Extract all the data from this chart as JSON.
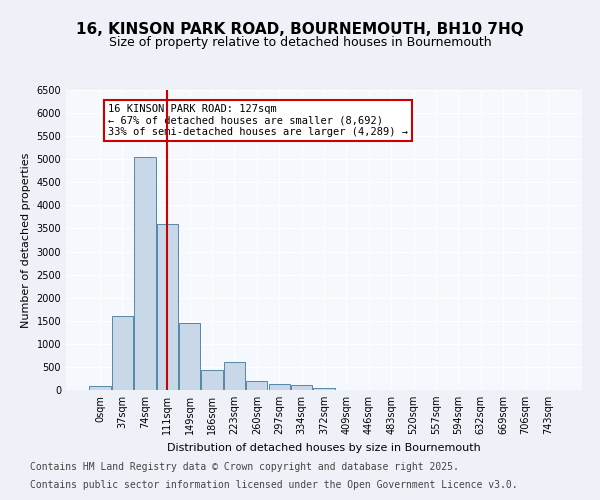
{
  "title": "16, KINSON PARK ROAD, BOURNEMOUTH, BH10 7HQ",
  "subtitle": "Size of property relative to detached houses in Bournemouth",
  "xlabel": "Distribution of detached houses by size in Bournemouth",
  "ylabel": "Number of detached properties",
  "bin_labels": [
    "0sqm",
    "37sqm",
    "74sqm",
    "111sqm",
    "149sqm",
    "186sqm",
    "223sqm",
    "260sqm",
    "297sqm",
    "334sqm",
    "372sqm",
    "409sqm",
    "446sqm",
    "483sqm",
    "520sqm",
    "557sqm",
    "594sqm",
    "632sqm",
    "669sqm",
    "706sqm",
    "743sqm"
  ],
  "bar_values": [
    80,
    1600,
    5050,
    3600,
    1450,
    430,
    600,
    200,
    140,
    100,
    40,
    5,
    2,
    0,
    0,
    0,
    0,
    0,
    0,
    0,
    0
  ],
  "bar_color": "#c8d8e8",
  "bar_edge_color": "#5588aa",
  "property_value": 127,
  "property_bin_index": 3,
  "vline_color": "#cc0000",
  "annotation_text": "16 KINSON PARK ROAD: 127sqm\n← 67% of detached houses are smaller (8,692)\n33% of semi-detached houses are larger (4,289) →",
  "annotation_box_edge": "#cc0000",
  "ylim": [
    0,
    6500
  ],
  "yticks": [
    0,
    500,
    1000,
    1500,
    2000,
    2500,
    3000,
    3500,
    4000,
    4500,
    5000,
    5500,
    6000,
    6500
  ],
  "footer_line1": "Contains HM Land Registry data © Crown copyright and database right 2025.",
  "footer_line2": "Contains public sector information licensed under the Open Government Licence v3.0.",
  "bg_color": "#eef2f8",
  "plot_bg_color": "#f5f8fc",
  "grid_color": "#ffffff",
  "title_fontsize": 11,
  "subtitle_fontsize": 9,
  "axis_label_fontsize": 8,
  "tick_fontsize": 7,
  "footer_fontsize": 7
}
